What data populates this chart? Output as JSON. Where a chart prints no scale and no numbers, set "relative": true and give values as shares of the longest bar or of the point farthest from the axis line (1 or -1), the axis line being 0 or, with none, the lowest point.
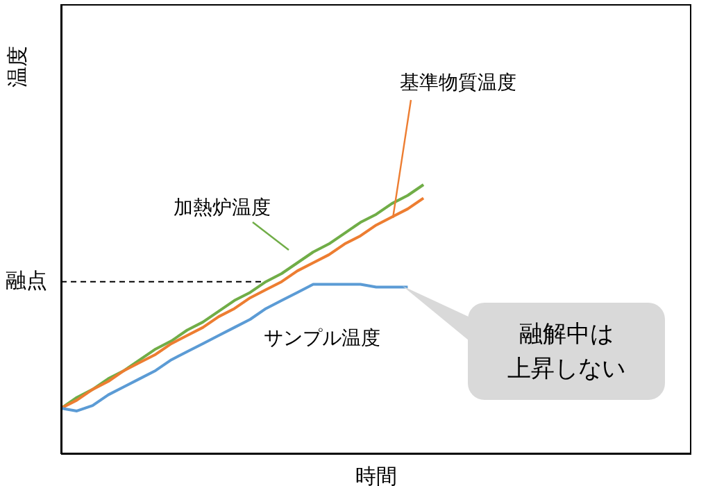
{
  "chart_data": {
    "type": "line",
    "relative": true,
    "xlabel": "時間",
    "ylabel": "温度",
    "legend": false,
    "marker": "none",
    "line_style": "solid",
    "categories": [
      null,
      null,
      null,
      null,
      null,
      null,
      null,
      null,
      null,
      null,
      null,
      null,
      null,
      null,
      null,
      null,
      null,
      null,
      null,
      null,
      null,
      null,
      null,
      null,
      null,
      null,
      null,
      null,
      null,
      null,
      null,
      null,
      null,
      null,
      null,
      null,
      null,
      null,
      null,
      null,
      null
    ],
    "series": [
      {
        "name": "加熱炉温度",
        "color": "#70ad47",
        "values": [
          0.17,
          0.21,
          0.24,
          0.28,
          0.31,
          0.35,
          0.39,
          0.42,
          0.46,
          0.49,
          0.53,
          0.57,
          0.6,
          0.64,
          0.67,
          0.71,
          0.75,
          0.78,
          0.82,
          0.86,
          0.89,
          0.93,
          0.96,
          1,
          null,
          null,
          null,
          null,
          null,
          null,
          null,
          null,
          null,
          null,
          null,
          null,
          null,
          null,
          null,
          null,
          null
        ]
      },
      {
        "name": "基準物質温度",
        "color": "#ed7d31",
        "values": [
          0.17,
          0.2,
          0.24,
          0.27,
          0.31,
          0.34,
          0.37,
          0.41,
          0.44,
          0.47,
          0.51,
          0.54,
          0.58,
          0.61,
          0.64,
          0.68,
          0.71,
          0.74,
          0.78,
          0.81,
          0.85,
          0.88,
          0.91,
          0.95,
          null,
          null,
          null,
          null,
          null,
          null,
          null,
          null,
          null,
          null,
          null,
          null,
          null,
          null,
          null,
          null,
          null
        ]
      },
      {
        "name": "サンプル温度",
        "color": "#5b9bd5",
        "values": [
          0.17,
          0.16,
          0.18,
          0.22,
          0.25,
          0.28,
          0.31,
          0.35,
          0.38,
          0.41,
          0.44,
          0.47,
          0.5,
          0.54,
          0.57,
          0.6,
          0.63,
          0.63,
          0.63,
          0.63,
          0.62,
          0.62,
          0.62,
          null,
          null,
          null,
          null,
          null,
          null,
          null,
          null,
          null,
          null,
          null,
          null,
          null,
          null,
          null,
          null,
          null,
          null
        ]
      }
    ],
    "ref_lines": [
      {
        "axis": "y",
        "value": 0.64,
        "label": "融点",
        "color": "#000000",
        "line_style": "dashed"
      }
    ],
    "annotations": [
      "融解中は上昇しない"
    ]
  }
}
